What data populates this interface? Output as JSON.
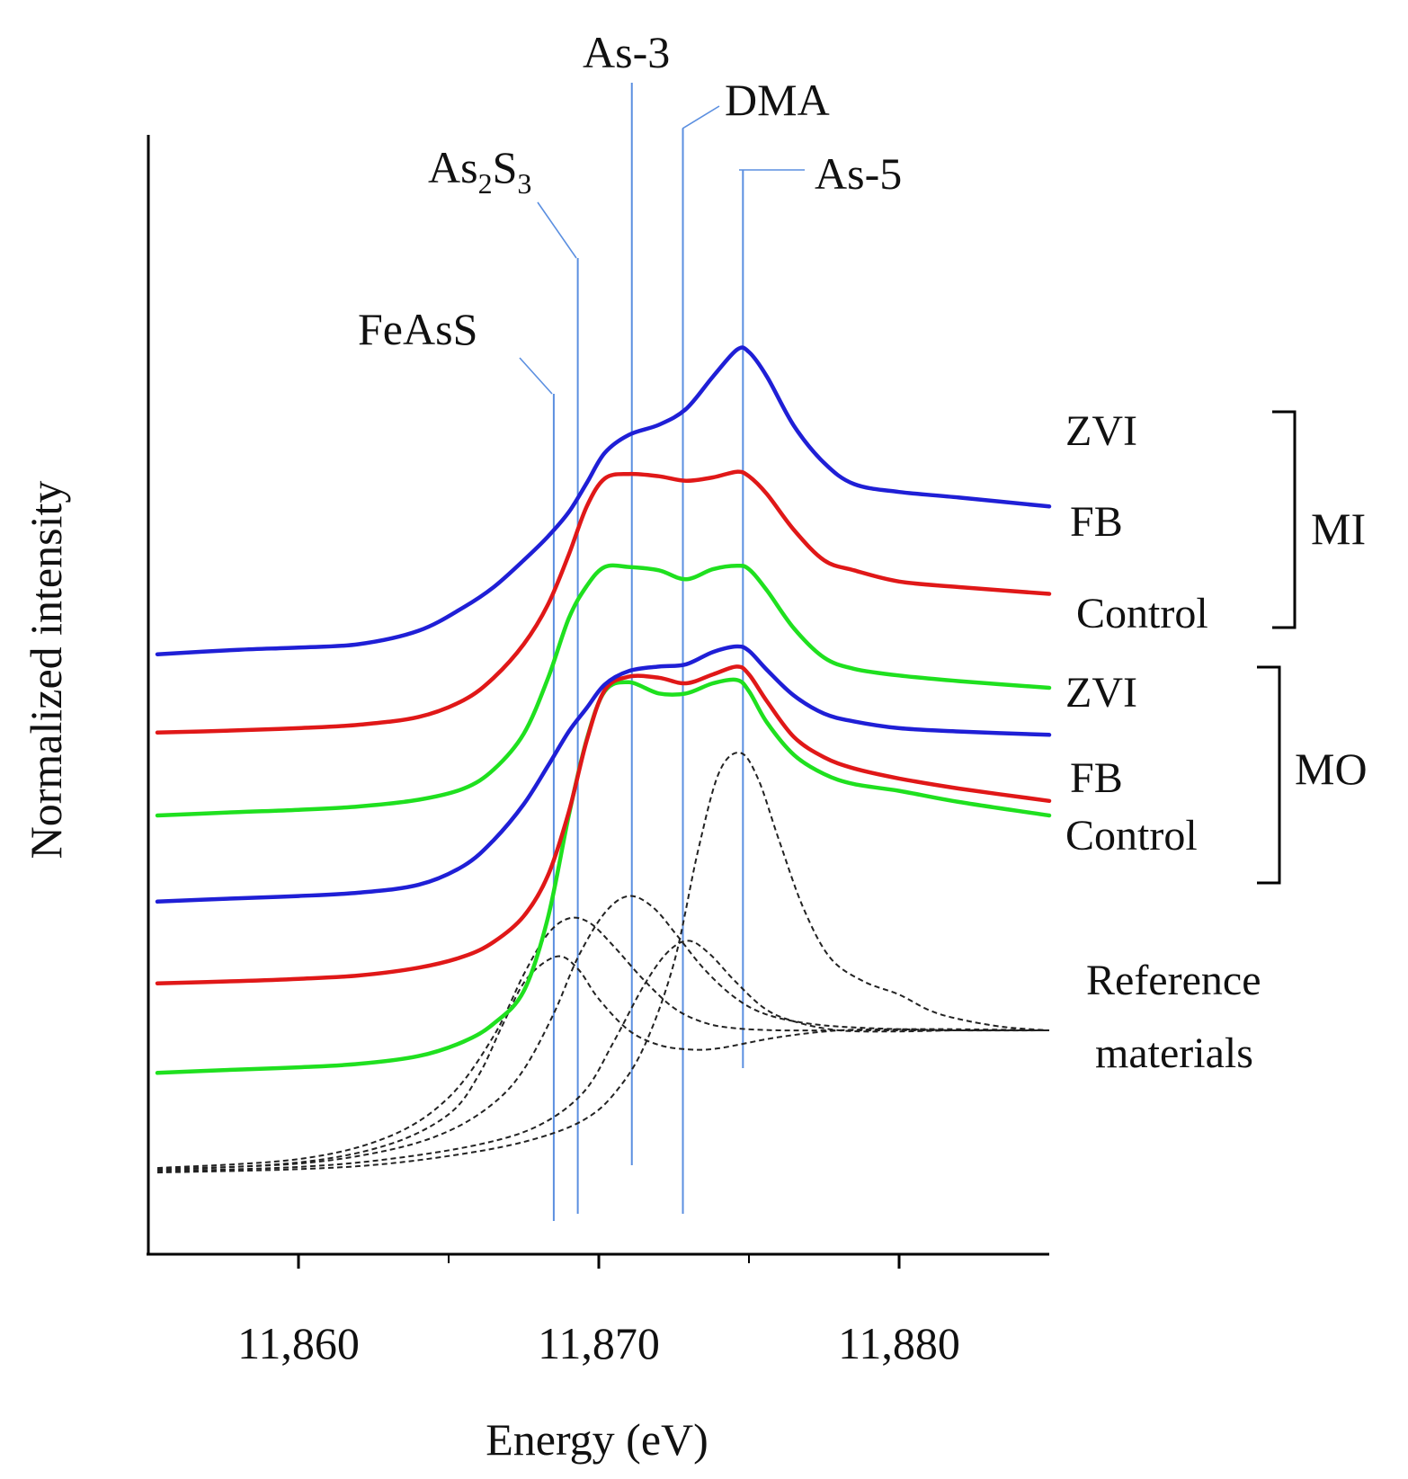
{
  "chart_data": {
    "type": "line",
    "title": "",
    "xlabel": "Energy (eV)",
    "ylabel": "Normalized intensity",
    "xlim": [
      11855,
      11885
    ],
    "ylim": [
      0,
      1
    ],
    "x_ticks": [
      11860,
      11870,
      11880
    ],
    "x_tick_labels": [
      "11,860",
      "11,870",
      "11,880"
    ],
    "x_minor_ticks": [
      11865,
      11875
    ],
    "grid": false,
    "reference_lines": [
      {
        "name": "FeAsS",
        "energy": 11868.5
      },
      {
        "name": "As2S3",
        "energy": 11869.3
      },
      {
        "name": "As-3",
        "energy": 11871.1
      },
      {
        "name": "DMA",
        "energy": 11872.8
      },
      {
        "name": "As-5",
        "energy": 11874.8
      }
    ],
    "reference_labels": {
      "feass": "FeAsS",
      "as2s3_main_1": "As",
      "as2s3_sub_1": "2",
      "as2s3_main_2": "S",
      "as2s3_sub_2": "3",
      "as3": "As-3",
      "dma": "DMA",
      "as5": "As-5"
    },
    "series_colors": {
      "ZVI": "#1f1fd6",
      "FB": "#e01818",
      "Control": "#1fe01f",
      "Reference": "#222222"
    },
    "groups": [
      {
        "name": "MI",
        "labels": [
          "ZVI",
          "FB",
          "Control"
        ]
      },
      {
        "name": "MO",
        "labels": [
          "ZVI",
          "FB",
          "Control"
        ]
      },
      {
        "name": "Reference materials",
        "lines": [
          "Reference",
          "materials"
        ]
      }
    ],
    "series": [
      {
        "name": "ZVI",
        "group": "MI",
        "color": "#1f1fd6",
        "x": [
          11855.3,
          11858,
          11860,
          11862,
          11864,
          11865.5,
          11866.5,
          11867.5,
          11868.3,
          11869,
          11869.6,
          11870.2,
          11871,
          11872,
          11872.9,
          11873.8,
          11874.6,
          11875,
          11875.6,
          11876.5,
          11877.5,
          11878.5,
          11880,
          11882,
          11885
        ],
        "y": [
          0.536,
          0.54,
          0.542,
          0.545,
          0.557,
          0.578,
          0.596,
          0.62,
          0.641,
          0.663,
          0.689,
          0.716,
          0.732,
          0.741,
          0.755,
          0.784,
          0.808,
          0.806,
          0.784,
          0.74,
          0.707,
          0.688,
          0.681,
          0.676,
          0.668
        ]
      },
      {
        "name": "FB",
        "group": "MI",
        "color": "#e01818",
        "x": [
          11855.3,
          11858,
          11860,
          11862,
          11864,
          11865.5,
          11866.5,
          11867.5,
          11868.3,
          11869,
          11869.6,
          11870.2,
          11871,
          11872,
          11872.9,
          11873.8,
          11874.6,
          11875,
          11875.6,
          11876.5,
          11877.5,
          11878.5,
          11880,
          11882,
          11885
        ],
        "y": [
          0.466,
          0.468,
          0.47,
          0.473,
          0.48,
          0.495,
          0.515,
          0.545,
          0.58,
          0.625,
          0.668,
          0.693,
          0.697,
          0.695,
          0.691,
          0.694,
          0.699,
          0.695,
          0.679,
          0.647,
          0.62,
          0.611,
          0.601,
          0.596,
          0.59
        ]
      },
      {
        "name": "Control",
        "group": "MI",
        "color": "#1fe01f",
        "x": [
          11855.3,
          11858,
          11860,
          11862,
          11864,
          11865.5,
          11866.5,
          11867.5,
          11868.3,
          11869,
          11869.6,
          11870.2,
          11871,
          11872,
          11872.9,
          11873.8,
          11874.6,
          11875,
          11875.6,
          11876.5,
          11877.5,
          11878.5,
          11880,
          11882,
          11885
        ],
        "y": [
          0.392,
          0.395,
          0.397,
          0.4,
          0.406,
          0.416,
          0.433,
          0.465,
          0.514,
          0.568,
          0.597,
          0.614,
          0.614,
          0.611,
          0.603,
          0.612,
          0.615,
          0.612,
          0.593,
          0.559,
          0.533,
          0.523,
          0.517,
          0.512,
          0.506
        ]
      },
      {
        "name": "ZVI",
        "group": "MO",
        "color": "#1f1fd6",
        "x": [
          11855.3,
          11858,
          11860,
          11862,
          11864,
          11865.5,
          11866.5,
          11867.5,
          11868.3,
          11869,
          11869.6,
          11870.2,
          11871,
          11872,
          11872.9,
          11873.8,
          11874.6,
          11875,
          11875.6,
          11876.5,
          11877.5,
          11878.5,
          11880,
          11882,
          11885
        ],
        "y": [
          0.315,
          0.318,
          0.32,
          0.323,
          0.33,
          0.347,
          0.37,
          0.402,
          0.436,
          0.467,
          0.488,
          0.509,
          0.521,
          0.525,
          0.527,
          0.538,
          0.543,
          0.539,
          0.522,
          0.499,
          0.483,
          0.476,
          0.47,
          0.467,
          0.464
        ]
      },
      {
        "name": "FB",
        "group": "MO",
        "color": "#e01818",
        "x": [
          11855.3,
          11858,
          11860,
          11862,
          11864,
          11865.5,
          11866.5,
          11867.5,
          11868.3,
          11869,
          11869.6,
          11870.2,
          11871,
          11872,
          11872.9,
          11873.8,
          11874.6,
          11875,
          11875.6,
          11876.5,
          11877.5,
          11878.5,
          11880,
          11882,
          11885
        ],
        "y": [
          0.242,
          0.244,
          0.246,
          0.249,
          0.256,
          0.266,
          0.279,
          0.302,
          0.338,
          0.395,
          0.459,
          0.504,
          0.516,
          0.515,
          0.51,
          0.518,
          0.525,
          0.518,
          0.494,
          0.462,
          0.444,
          0.434,
          0.425,
          0.416,
          0.405
        ]
      },
      {
        "name": "Control",
        "group": "MO",
        "color": "#1fe01f",
        "x": [
          11855.3,
          11858,
          11860,
          11862,
          11864,
          11865.5,
          11866.5,
          11867.5,
          11868.3,
          11869,
          11869.6,
          11870.2,
          11871,
          11872,
          11872.9,
          11873.8,
          11874.6,
          11875,
          11875.6,
          11876.5,
          11877.5,
          11878.5,
          11880,
          11882,
          11885
        ],
        "y": [
          0.162,
          0.165,
          0.167,
          0.17,
          0.177,
          0.19,
          0.206,
          0.235,
          0.3,
          0.392,
          0.46,
          0.503,
          0.511,
          0.501,
          0.501,
          0.51,
          0.513,
          0.503,
          0.475,
          0.446,
          0.429,
          0.42,
          0.414,
          0.404,
          0.392
        ]
      }
    ],
    "reference_curves": [
      {
        "name": "FeAsS",
        "x": [
          11855.3,
          11860,
          11863,
          11865,
          11866,
          11866.8,
          11867.6,
          11868.6,
          11869.3,
          11870,
          11871,
          11872,
          11873,
          11874,
          11876,
          11878,
          11880,
          11882,
          11885
        ],
        "y": [
          0.075,
          0.082,
          0.098,
          0.125,
          0.16,
          0.205,
          0.246,
          0.266,
          0.255,
          0.228,
          0.2,
          0.187,
          0.183,
          0.184,
          0.194,
          0.2,
          0.201,
          0.201,
          0.2
        ]
      },
      {
        "name": "As2S3",
        "x": [
          11855.3,
          11860,
          11863,
          11865,
          11866.5,
          11867.5,
          11868.3,
          11869,
          11869.7,
          11870.5,
          11871.5,
          11872.5,
          11873.5,
          11874.5,
          11876,
          11878,
          11880,
          11882,
          11885
        ],
        "y": [
          0.077,
          0.085,
          0.105,
          0.14,
          0.195,
          0.25,
          0.286,
          0.3,
          0.296,
          0.275,
          0.245,
          0.22,
          0.207,
          0.202,
          0.2,
          0.2,
          0.2,
          0.2,
          0.2
        ]
      },
      {
        "name": "As-3",
        "x": [
          11855.3,
          11860,
          11863,
          11865,
          11866.5,
          11867.5,
          11868.5,
          11869.3,
          11870.2,
          11871,
          11871.8,
          11872.6,
          11873.5,
          11874.5,
          11875.5,
          11877,
          11879,
          11882,
          11885
        ],
        "y": [
          0.076,
          0.081,
          0.093,
          0.11,
          0.135,
          0.165,
          0.215,
          0.265,
          0.305,
          0.32,
          0.31,
          0.285,
          0.255,
          0.23,
          0.215,
          0.206,
          0.202,
          0.2,
          0.2
        ]
      },
      {
        "name": "DMA",
        "x": [
          11855.3,
          11860,
          11863,
          11866,
          11868,
          11869.5,
          11870.5,
          11871.5,
          11872.3,
          11873,
          11873.7,
          11874.5,
          11875.5,
          11876.5,
          11878,
          11880,
          11882,
          11885
        ],
        "y": [
          0.074,
          0.078,
          0.085,
          0.098,
          0.115,
          0.145,
          0.19,
          0.24,
          0.27,
          0.28,
          0.268,
          0.245,
          0.22,
          0.208,
          0.2,
          0.199,
          0.2,
          0.2
        ]
      },
      {
        "name": "As-5",
        "x": [
          11855.3,
          11860,
          11863,
          11866,
          11868,
          11869.5,
          11870.5,
          11871.5,
          11872.5,
          11873.3,
          11874,
          11874.7,
          11875.3,
          11876,
          11876.8,
          11877.7,
          11878.8,
          11880,
          11881,
          11882,
          11883.5,
          11885
        ],
        "y": [
          0.073,
          0.076,
          0.081,
          0.092,
          0.104,
          0.12,
          0.143,
          0.185,
          0.26,
          0.36,
          0.43,
          0.448,
          0.425,
          0.37,
          0.31,
          0.265,
          0.244,
          0.232,
          0.218,
          0.21,
          0.203,
          0.2
        ]
      }
    ]
  }
}
